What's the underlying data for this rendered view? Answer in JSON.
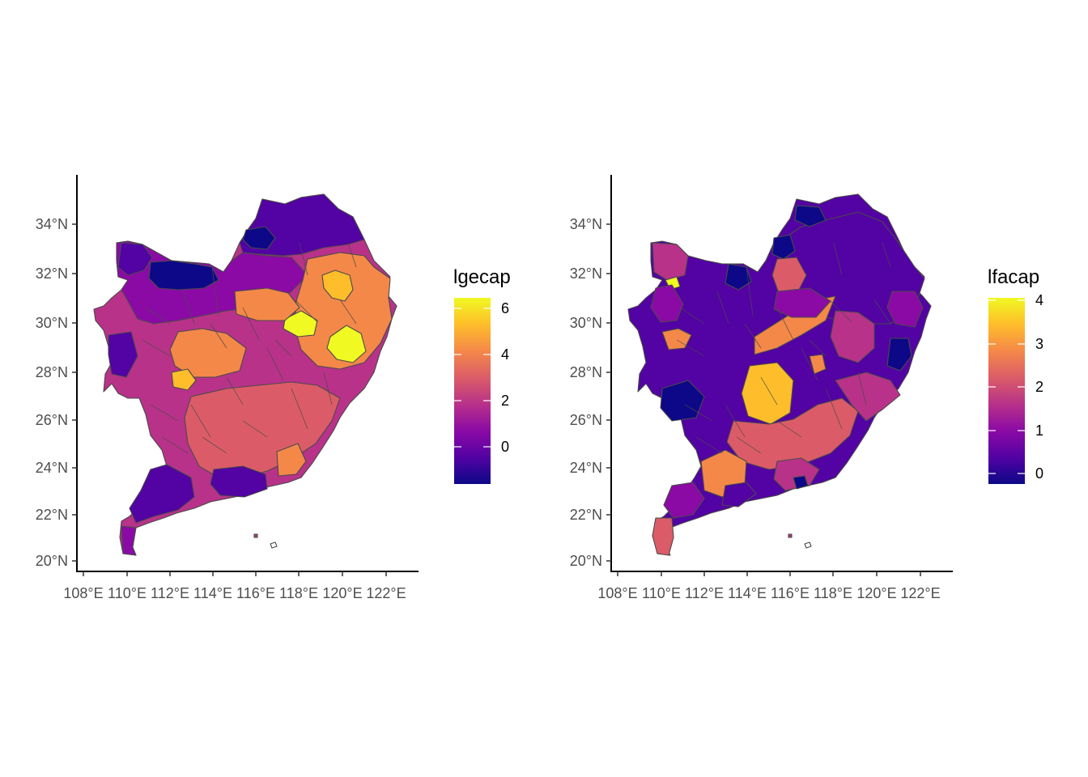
{
  "chart_data": [
    {
      "type": "choropleth",
      "legend_title": "lgecap",
      "legend_placement": "right",
      "colorscale": "plasma",
      "colorscale_colors": [
        "#0d0887",
        "#5302a3",
        "#8b0aa5",
        "#b83289",
        "#db5c68",
        "#f48849",
        "#febd2a",
        "#f0f921"
      ],
      "value_range": [
        -1.5,
        6.5
      ],
      "legend_ticks": [
        {
          "value": 0,
          "label": "0"
        },
        {
          "value": 2,
          "label": "2"
        },
        {
          "value": 4,
          "label": "4"
        },
        {
          "value": 6,
          "label": "6"
        }
      ],
      "x_ticks": [
        "108°E",
        "110°E",
        "112°E",
        "114°E",
        "116°E",
        "118°E",
        "120°E",
        "122°E"
      ],
      "y_ticks": [
        "20°N",
        "22°N",
        "24°N",
        "26°N",
        "28°N",
        "30°N",
        "32°N",
        "34°N"
      ],
      "xlim": [
        107.9,
        122.8
      ],
      "ylim": [
        19.5,
        35.6
      ],
      "grid": false
    },
    {
      "type": "choropleth",
      "legend_title": "lfacap",
      "legend_placement": "right",
      "colorscale": "plasma",
      "colorscale_colors": [
        "#0d0887",
        "#5302a3",
        "#8b0aa5",
        "#b83289",
        "#db5c68",
        "#f48849",
        "#febd2a",
        "#f0f921"
      ],
      "value_range": [
        -0.3,
        4.1
      ],
      "legend_ticks": [
        {
          "value": 0,
          "label": "0"
        },
        {
          "value": 1,
          "label": "1"
        },
        {
          "value": 2,
          "label": "2"
        },
        {
          "value": 3,
          "label": "3"
        },
        {
          "value": 4,
          "label": "4"
        }
      ],
      "x_ticks": [
        "108°E",
        "110°E",
        "112°E",
        "114°E",
        "116°E",
        "118°E",
        "120°E",
        "122°E"
      ],
      "y_ticks": [
        "20°N",
        "22°N",
        "24°N",
        "26°N",
        "28°N",
        "30°N",
        "32°N",
        "34°N"
      ],
      "xlim": [
        107.9,
        122.8
      ],
      "ylim": [
        19.5,
        35.6
      ],
      "grid": false
    }
  ]
}
